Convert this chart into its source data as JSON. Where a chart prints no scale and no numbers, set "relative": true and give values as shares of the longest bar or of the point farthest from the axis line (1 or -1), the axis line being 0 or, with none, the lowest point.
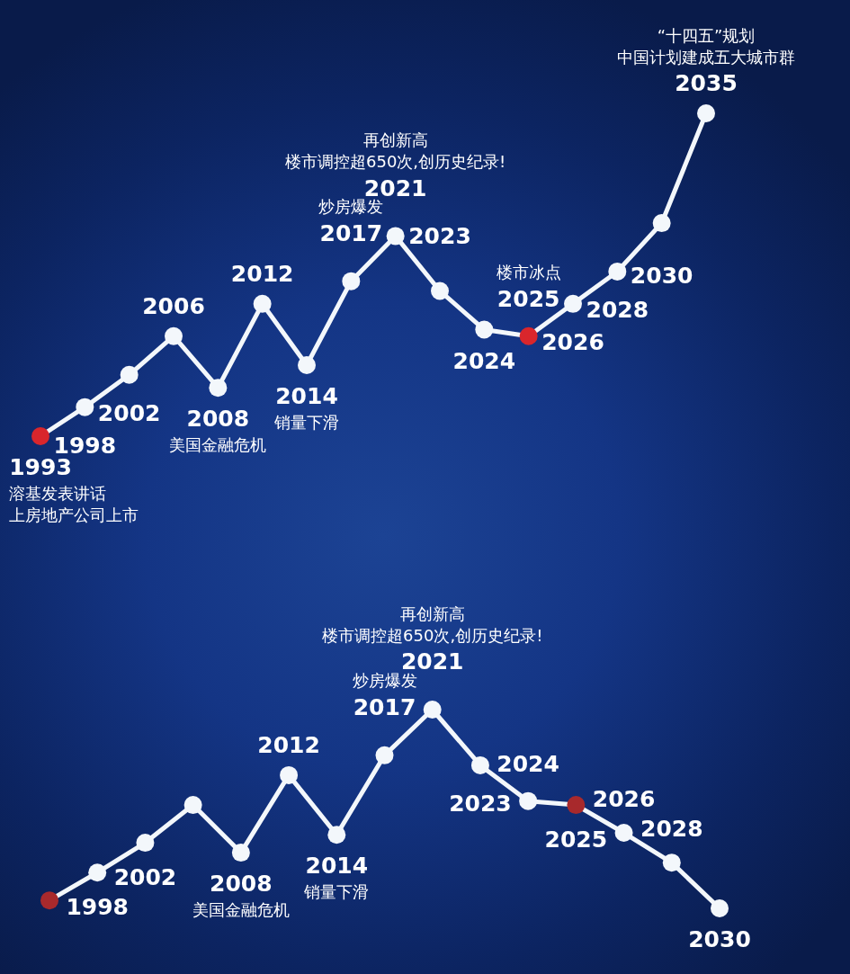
{
  "chart_data": [
    {
      "type": "line",
      "relative": true,
      "categories": [
        null,
        null,
        null,
        null,
        null,
        null,
        null,
        null,
        null,
        null,
        null,
        null,
        null,
        null,
        null,
        null
      ],
      "values": [
        0,
        0.09,
        0.19,
        0.31,
        0.15,
        0.41,
        0.22,
        0.48,
        0.62,
        0.45,
        0.33,
        0.31,
        0.41,
        0.51,
        0.66,
        1
      ],
      "color": "#f3f7fb",
      "colors": [
        "#d9262c",
        "#f3f7fb",
        "#f3f7fb",
        "#f3f7fb",
        "#f3f7fb",
        "#f3f7fb",
        "#f3f7fb",
        "#f3f7fb",
        "#f3f7fb",
        "#f3f7fb",
        "#f3f7fb",
        "#d9262c",
        "#f3f7fb",
        "#f3f7fb",
        "#f3f7fb",
        "#f3f7fb"
      ],
      "marker": "circle",
      "line_style": "solid",
      "annotations": [
        {
          "text": "1993",
          "y": 0
        },
        "溶基发表讲话",
        "上房地产公司上市",
        {
          "text": "1998",
          "y": 0.09
        },
        {
          "text": "2002",
          "y": 0.19
        },
        {
          "text": "2006",
          "y": 0.31
        },
        {
          "text": "2008",
          "y": 0.15
        },
        "美国金融危机",
        {
          "text": "2012",
          "y": 0.41
        },
        {
          "text": "2014",
          "y": 0.22
        },
        "销量下滑",
        {
          "text": "2017",
          "y": 0.48
        },
        "炒房爆发",
        {
          "text": "2021",
          "y": 0.62
        },
        "再创新高",
        "楼市调控超650次,创历史纪录!",
        {
          "text": "2023",
          "y": 0.45
        },
        {
          "text": "2024",
          "y": 0.33
        },
        {
          "text": "2025",
          "y": 0.31
        },
        "楼市冰点",
        {
          "text": "2026",
          "y": 0.41
        },
        {
          "text": "2028",
          "y": 0.51
        },
        {
          "text": "2030",
          "y": 0.66
        },
        {
          "text": "2035",
          "y": 1
        },
        "“十四五”规划",
        "中国计划建成五大城市群"
      ]
    },
    {
      "type": "line",
      "relative": true,
      "categories": [
        null,
        null,
        null,
        null,
        null,
        null,
        null,
        null,
        null,
        null,
        null,
        null,
        null,
        null,
        null
      ],
      "values": [
        0.04,
        0.18,
        0.33,
        0.52,
        0.28,
        0.67,
        0.37,
        0.77,
        1,
        0.72,
        0.54,
        0.52,
        0.38,
        0.23,
        0
      ],
      "color": "#f3f7fb",
      "colors": [
        "#a8292c",
        "#f3f7fb",
        "#f3f7fb",
        "#f3f7fb",
        "#f3f7fb",
        "#f3f7fb",
        "#f3f7fb",
        "#f3f7fb",
        "#f3f7fb",
        "#f3f7fb",
        "#f3f7fb",
        "#a8292c",
        "#f3f7fb",
        "#f3f7fb",
        "#f3f7fb"
      ],
      "marker": "circle",
      "line_style": "solid",
      "annotations": [
        {
          "text": "1998",
          "y": 0.18
        },
        {
          "text": "2002",
          "y": 0.33
        },
        {
          "text": "2008",
          "y": 0.28
        },
        "美国金融危机",
        {
          "text": "2012",
          "y": 0.67
        },
        {
          "text": "2014",
          "y": 0.37
        },
        "销量下滑",
        {
          "text": "2017",
          "y": 0.77
        },
        "炒房爆发",
        {
          "text": "2021",
          "y": 1
        },
        "再创新高",
        "楼市调控超650次,创历史纪录!",
        {
          "text": "2023",
          "y": 0.72
        },
        {
          "text": "2024",
          "y": 0.54
        },
        {
          "text": "2025",
          "y": 0.52
        },
        {
          "text": "2026",
          "y": 0.38
        },
        {
          "text": "2028",
          "y": 0.23
        },
        {
          "text": "2030",
          "y": 0
        }
      ]
    }
  ]
}
